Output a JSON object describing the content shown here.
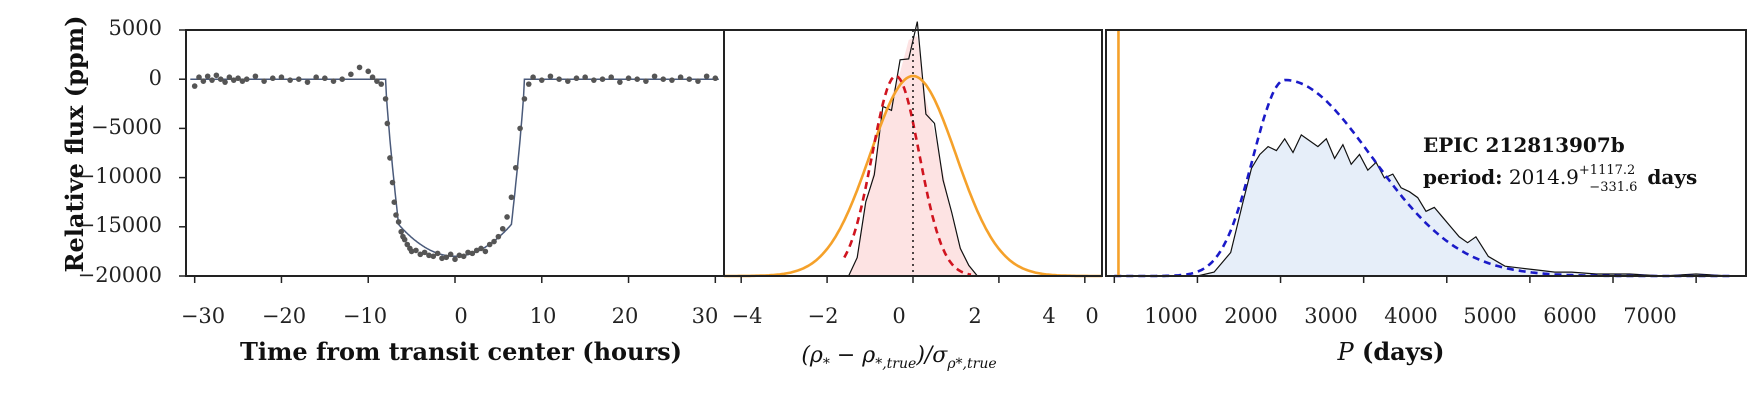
{
  "chart_data": [
    {
      "type": "scatter",
      "xlabel": "Time from transit center (hours)",
      "ylabel": "Relative flux (ppm)",
      "xlim": [
        -31,
        31
      ],
      "ylim": [
        -20000,
        5000
      ],
      "xticks": [
        "−30",
        "−20",
        "−10",
        "0",
        "10",
        "20",
        "30"
      ],
      "yticks": [
        "5000",
        "0",
        "−5000",
        "−10000",
        "−15000",
        "−20000"
      ],
      "transit_depth_ppm": -18000,
      "ingress_start_hours": -8,
      "ingress_end_hours": -6.5,
      "egress_start_hours": 6.5,
      "egress_end_hours": 8,
      "grid": false,
      "series": [
        {
          "kind": "points",
          "x": [
            -30,
            -29.5,
            -29,
            -28.5,
            -28,
            -27.5,
            -27,
            -26.5,
            -26,
            -25.5,
            -25,
            -24.5,
            -24,
            -23,
            -22,
            -21,
            -20,
            -19,
            -18,
            -17,
            -16,
            -15,
            -14,
            -13,
            -12,
            -11,
            -10,
            -9.5,
            -9,
            -8.5,
            -8,
            -7.8,
            -7.5,
            -7.2,
            -7,
            -6.8,
            -6.5,
            -6.2,
            -6,
            -5.8,
            -5.5,
            -5.2,
            -5,
            -4.5,
            -4,
            -3.5,
            -3,
            -2.5,
            -2,
            -1.5,
            -1,
            -0.5,
            0,
            0.5,
            1,
            1.5,
            2,
            2.5,
            3,
            3.5,
            4,
            4.5,
            5,
            5.5,
            6,
            6.5,
            7,
            7.5,
            8,
            8.5,
            9,
            10,
            11,
            12,
            13,
            14,
            15,
            16,
            17,
            18,
            19,
            20,
            21,
            22,
            23,
            24,
            25,
            26,
            27,
            28,
            29,
            30
          ],
          "y": [
            -700,
            200,
            -200,
            300,
            -100,
            400,
            0,
            -300,
            200,
            -100,
            100,
            -200,
            0,
            300,
            -200,
            100,
            200,
            -100,
            0,
            -300,
            200,
            100,
            -200,
            0,
            500,
            1200,
            800,
            200,
            -200,
            -500,
            -2000,
            -4500,
            -8000,
            -10500,
            -12500,
            -13800,
            -14500,
            -15500,
            -16000,
            -16300,
            -16800,
            -17200,
            -17500,
            -17400,
            -17800,
            -17600,
            -17900,
            -18000,
            -17700,
            -18200,
            -18100,
            -17800,
            -18300,
            -17900,
            -18000,
            -17600,
            -17700,
            -17400,
            -17200,
            -17500,
            -16800,
            -16500,
            -16000,
            -15200,
            -14000,
            -12000,
            -9000,
            -5000,
            -2000,
            -500,
            200,
            -100,
            300,
            0,
            -200,
            100,
            200,
            -100,
            0,
            200,
            -300,
            100,
            0,
            -200,
            300,
            0,
            -100,
            200,
            0,
            -200,
            300,
            100
          ]
        },
        {
          "kind": "model",
          "name": ""
        }
      ]
    },
    {
      "type": "area",
      "xlabel": "(ρ* − ρ*,true)/σρ*,true",
      "xlim": [
        -4.4,
        4.4
      ],
      "xticks": [
        "−4",
        "−2",
        "0",
        "2",
        "4"
      ],
      "vline_x": 0,
      "series": [
        {
          "kind": "histogram_outline",
          "x": [
            -1.5,
            -1.3,
            -1.1,
            -0.9,
            -0.7,
            -0.5,
            -0.3,
            -0.1,
            0.1,
            0.3,
            0.5,
            0.7,
            0.9,
            1.1,
            1.3,
            1.5
          ],
          "y": [
            0.0,
            0.1,
            0.35,
            0.55,
            0.8,
            0.9,
            1.02,
            1.18,
            1.2,
            0.88,
            0.72,
            0.52,
            0.3,
            0.15,
            0.05,
            0.0
          ]
        },
        {
          "kind": "gaussian_red_dashed",
          "mean": -0.4,
          "sigma": 0.55
        },
        {
          "kind": "gaussian_orange",
          "mean": 0,
          "sigma": 1
        }
      ]
    },
    {
      "type": "area",
      "xlabel": "P (days)",
      "xlim": [
        -100,
        7600
      ],
      "xticks": [
        "0",
        "1000",
        "2000",
        "3000",
        "4000",
        "5000",
        "6000",
        "7000"
      ],
      "vline_x": 50,
      "annotation": {
        "title": "EPIC 212813907b",
        "period_label": "period:",
        "value": "2014.9",
        "upper": "+1117.2",
        "lower": "−331.6",
        "unit": "days"
      },
      "series": [
        {
          "kind": "posterior_outline",
          "x": [
            1000,
            1200,
            1400,
            1550,
            1650,
            1750,
            1850,
            1950,
            2050,
            2150,
            2250,
            2350,
            2450,
            2550,
            2650,
            2750,
            2850,
            2950,
            3050,
            3150,
            3250,
            3350,
            3450,
            3550,
            3650,
            3750,
            3850,
            3950,
            4050,
            4150,
            4250,
            4350,
            4500,
            4700,
            4900,
            5100,
            5300,
            5500,
            5800,
            6200,
            6600,
            7000,
            7400
          ],
          "y": [
            0.0,
            0.02,
            0.12,
            0.38,
            0.55,
            0.62,
            0.66,
            0.64,
            0.7,
            0.63,
            0.72,
            0.69,
            0.66,
            0.7,
            0.6,
            0.67,
            0.57,
            0.62,
            0.54,
            0.58,
            0.5,
            0.52,
            0.45,
            0.43,
            0.4,
            0.33,
            0.35,
            0.3,
            0.25,
            0.2,
            0.17,
            0.2,
            0.1,
            0.05,
            0.04,
            0.03,
            0.02,
            0.02,
            0.01,
            0.01,
            0.0,
            0.01,
            0.0
          ]
        },
        {
          "kind": "prior_blue_dashed",
          "peak_x": 2050,
          "sigma_left": 380,
          "sigma_right": 1050
        }
      ]
    }
  ]
}
